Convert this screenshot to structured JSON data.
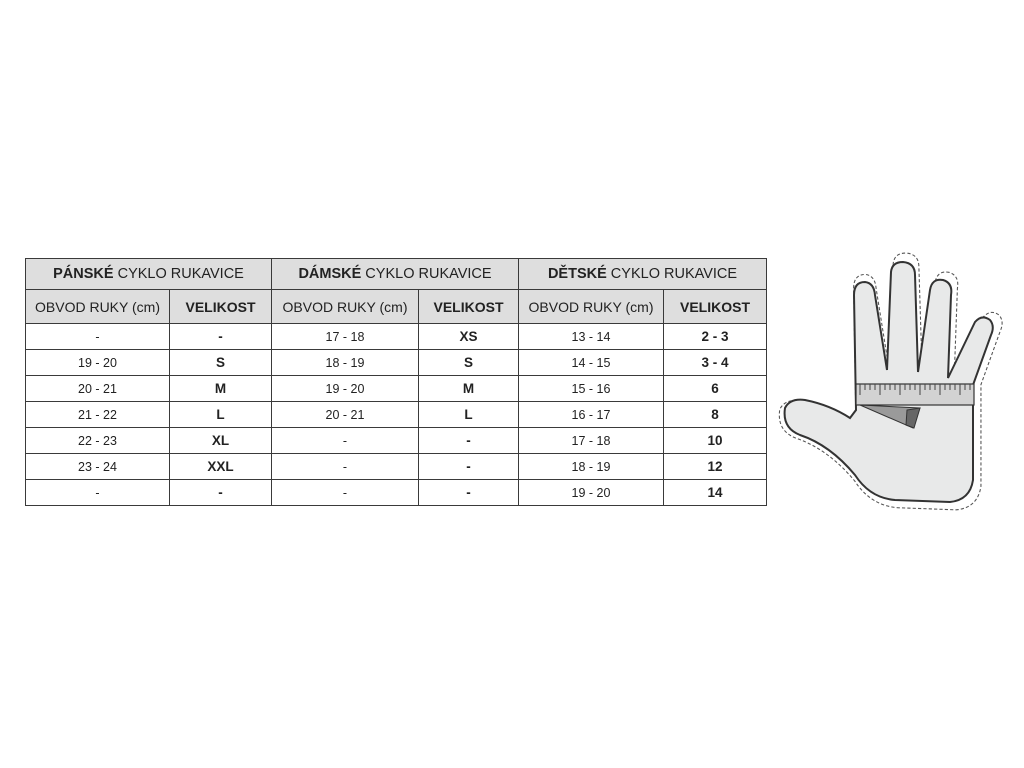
{
  "groups": [
    {
      "bold": "PÁNSKÉ",
      "rest": " CYKLO RUKAVICE"
    },
    {
      "bold": "DÁMSKÉ",
      "rest": " CYKLO RUKAVICE"
    },
    {
      "bold": "DĚTSKÉ",
      "rest": " CYKLO RUKAVICE"
    }
  ],
  "subheaders": {
    "circumference": "OBVOD RUKY (cm)",
    "size": "VELIKOST"
  },
  "rows": [
    [
      "-",
      "-",
      "17 - 18",
      "XS",
      "13 - 14",
      "2 - 3"
    ],
    [
      "19 - 20",
      "S",
      "18 - 19",
      "S",
      "14 - 15",
      "3 - 4"
    ],
    [
      "20 - 21",
      "M",
      "19 - 20",
      "M",
      "15 - 16",
      "6"
    ],
    [
      "21 - 22",
      "L",
      "20 - 21",
      "L",
      "16 - 17",
      "8"
    ],
    [
      "22 - 23",
      "XL",
      "-",
      "-",
      "17 - 18",
      "10"
    ],
    [
      "23 - 24",
      "XXL",
      "-",
      "-",
      "18 - 19",
      "12"
    ],
    [
      "-",
      "-",
      "-",
      "-",
      "19 - 20",
      "14"
    ]
  ],
  "illustration": {
    "icon": "hand-measuring-tape-icon",
    "fill": "#e8e9e9",
    "stroke": "#333333"
  },
  "colors": {
    "header_bg": "#dedede",
    "border": "#3a3a3a"
  }
}
